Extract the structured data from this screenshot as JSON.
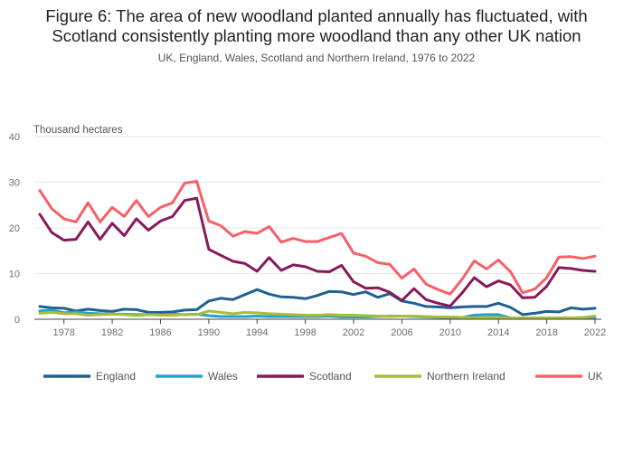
{
  "title_line1": "Figure 6: The area of new woodland planted annually has fluctuated, with",
  "title_line2": "Scotland consistently planting more woodland than any other UK nation",
  "subtitle": "UK, England, Wales, Scotland and Northern Ireland, 1976 to 2022",
  "chart_data": {
    "type": "line",
    "title": "Figure 6: The area of new woodland planted annually has fluctuated, with Scotland consistently planting more woodland than any other UK nation",
    "subtitle": "UK, England, Wales, Scotland and Northern Ireland, 1976 to 2022",
    "ylabel": "Thousand hectares",
    "xlabel": "",
    "xlim": [
      1976,
      2022
    ],
    "ylim": [
      0,
      40
    ],
    "yticks": [
      0,
      10,
      20,
      30,
      40
    ],
    "xticks": [
      1978,
      1982,
      1986,
      1990,
      1994,
      1998,
      2002,
      2006,
      2010,
      2014,
      2018,
      2022
    ],
    "grid": true,
    "legend_position": "bottom",
    "x": [
      1976,
      1977,
      1978,
      1979,
      1980,
      1981,
      1982,
      1983,
      1984,
      1985,
      1986,
      1987,
      1988,
      1989,
      1990,
      1991,
      1992,
      1993,
      1994,
      1995,
      1996,
      1997,
      1998,
      1999,
      2000,
      2001,
      2002,
      2003,
      2004,
      2005,
      2006,
      2007,
      2008,
      2009,
      2010,
      2011,
      2012,
      2013,
      2014,
      2015,
      2016,
      2017,
      2018,
      2019,
      2020,
      2021,
      2022
    ],
    "series": [
      {
        "name": "England",
        "color": "#206095",
        "values": [
          2.8,
          2.5,
          2.4,
          1.8,
          2.2,
          1.9,
          1.7,
          2.2,
          2.1,
          1.5,
          1.5,
          1.6,
          2.0,
          2.1,
          4.0,
          4.6,
          4.3,
          5.4,
          6.5,
          5.5,
          4.9,
          4.8,
          4.5,
          5.2,
          6.1,
          6.0,
          5.4,
          6.0,
          4.8,
          5.6,
          4.0,
          3.5,
          2.8,
          2.7,
          2.5,
          2.7,
          2.8,
          2.8,
          3.5,
          2.6,
          1.0,
          1.3,
          1.7,
          1.6,
          2.5,
          2.2,
          2.4
        ]
      },
      {
        "name": "Wales",
        "color": "#27a0cc",
        "values": [
          1.8,
          2.0,
          1.4,
          1.6,
          1.3,
          1.2,
          1.1,
          1.1,
          1.0,
          1.0,
          1.0,
          1.1,
          1.0,
          1.1,
          0.8,
          0.6,
          0.6,
          0.6,
          0.7,
          0.6,
          0.6,
          0.6,
          0.6,
          0.6,
          0.7,
          0.5,
          0.5,
          0.5,
          0.6,
          0.7,
          0.7,
          0.6,
          0.5,
          0.4,
          0.3,
          0.4,
          0.9,
          1.0,
          1.0,
          0.3,
          0.3,
          0.3,
          0.3,
          0.3,
          0.3,
          0.3,
          0.4
        ]
      },
      {
        "name": "Scotland",
        "color": "#871a5b",
        "values": [
          23.0,
          19.0,
          17.3,
          17.5,
          21.3,
          17.5,
          21.0,
          18.3,
          22.0,
          19.5,
          21.5,
          22.5,
          26.0,
          26.5,
          15.3,
          14.0,
          12.7,
          12.2,
          10.5,
          13.5,
          10.7,
          11.9,
          11.5,
          10.5,
          10.4,
          11.8,
          8.2,
          6.8,
          6.9,
          5.9,
          4.1,
          6.7,
          4.3,
          3.5,
          2.9,
          5.8,
          9.1,
          7.1,
          8.4,
          7.5,
          4.7,
          4.8,
          7.2,
          11.3,
          11.1,
          10.7,
          10.5
        ]
      },
      {
        "name": "Northern Ireland",
        "color": "#a8bd3a",
        "values": [
          1.3,
          1.5,
          1.2,
          1.2,
          0.9,
          1.0,
          1.1,
          1.0,
          0.8,
          1.0,
          0.9,
          0.9,
          1.0,
          1.0,
          1.8,
          1.5,
          1.2,
          1.5,
          1.4,
          1.2,
          1.1,
          1.0,
          0.9,
          0.9,
          1.0,
          0.9,
          0.9,
          0.8,
          0.7,
          0.6,
          0.7,
          0.7,
          0.6,
          0.5,
          0.5,
          0.4,
          0.3,
          0.4,
          0.4,
          0.3,
          0.3,
          0.3,
          0.3,
          0.3,
          0.3,
          0.4,
          0.7
        ]
      },
      {
        "name": "UK",
        "color": "#f66068",
        "values": [
          28.2,
          24.2,
          22.0,
          21.3,
          25.5,
          21.3,
          24.5,
          22.5,
          26.0,
          22.5,
          24.5,
          25.5,
          29.8,
          30.2,
          21.5,
          20.5,
          18.2,
          19.2,
          18.8,
          20.3,
          16.9,
          17.7,
          17.0,
          17.0,
          17.9,
          18.8,
          14.5,
          13.8,
          12.4,
          12.0,
          9.0,
          11.0,
          7.7,
          6.5,
          5.5,
          8.8,
          12.8,
          11.0,
          13.0,
          10.4,
          5.8,
          6.6,
          9.1,
          13.6,
          13.7,
          13.3,
          13.8
        ]
      }
    ]
  }
}
